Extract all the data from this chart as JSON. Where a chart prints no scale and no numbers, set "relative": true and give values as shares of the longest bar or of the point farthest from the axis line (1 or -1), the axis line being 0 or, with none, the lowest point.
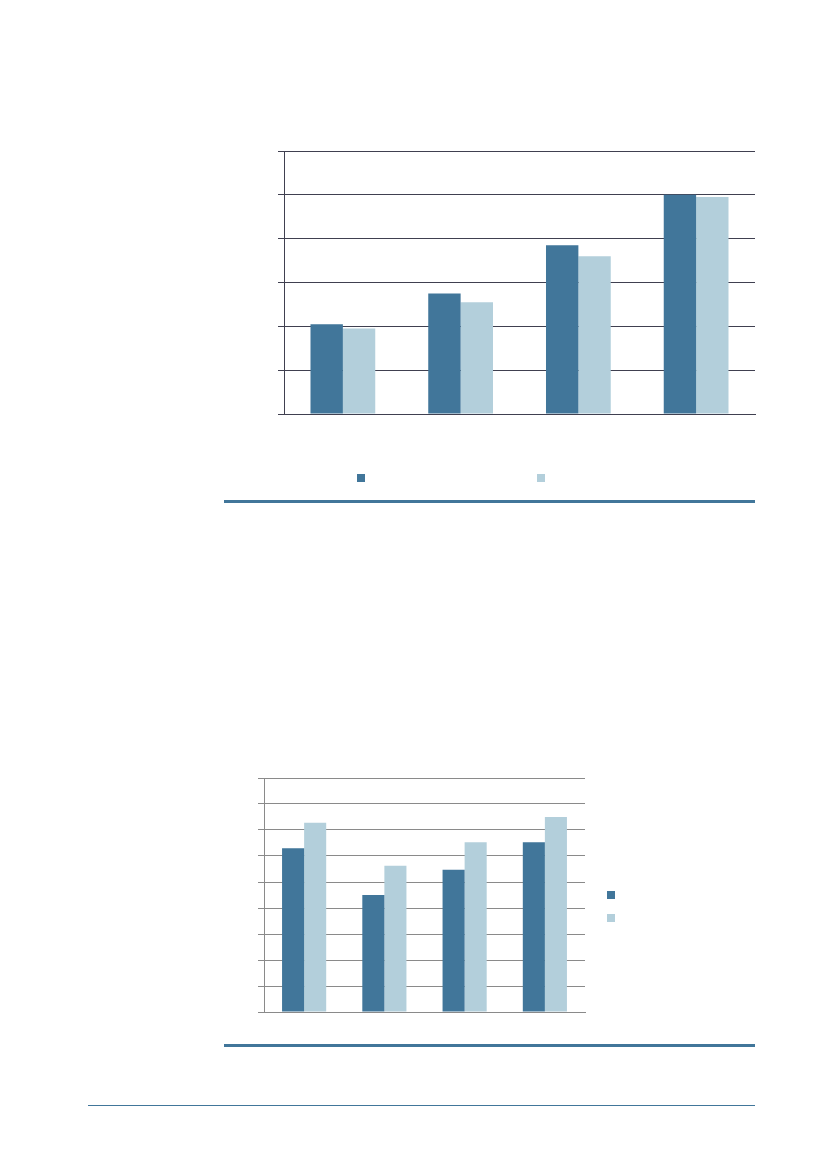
{
  "chart_data": [
    {
      "type": "bar",
      "relative": true,
      "categories": [
        null,
        null,
        null,
        null
      ],
      "grid": "y",
      "series": [
        {
          "color": "#41769a",
          "values": [
            0.41,
            0.55,
            0.77,
            1
          ]
        },
        {
          "color": "#b3cfdb",
          "values": [
            0.39,
            0.51,
            0.72,
            0.99
          ]
        }
      ]
    },
    {
      "type": "bar",
      "relative": true,
      "categories": [
        null,
        null,
        null,
        null
      ],
      "grid": "y",
      "series": [
        {
          "color": "#41769a",
          "values": [
            0.84,
            0.6,
            0.73,
            0.87
          ]
        },
        {
          "color": "#b3cfdb",
          "values": [
            0.97,
            0.75,
            0.87,
            1
          ]
        }
      ]
    }
  ]
}
